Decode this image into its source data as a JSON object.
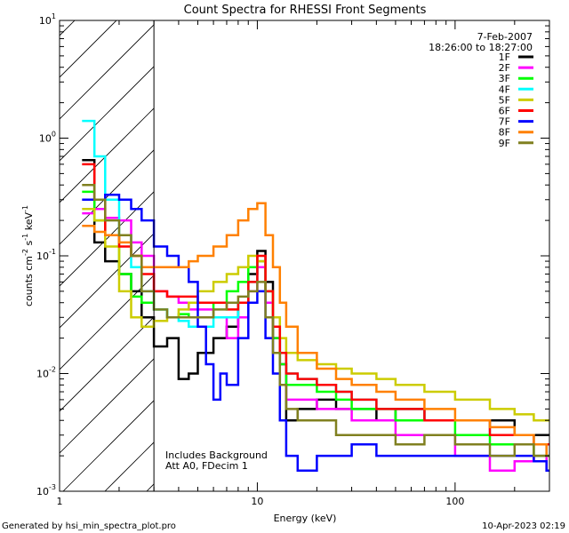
{
  "chart_data": {
    "type": "line",
    "title": "Count Spectra for RHESSI Front Segments",
    "xlabel": "Energy (keV)",
    "ylabel_main": "counts cm",
    "ylabel_sup1": "-2",
    "ylabel_mid1": " s",
    "ylabel_sup2": "-1",
    "ylabel_mid2": " keV",
    "ylabel_sup3": "-1",
    "xscale": "log",
    "yscale": "log",
    "xlim": [
      1,
      300
    ],
    "ylim": [
      0.001,
      10
    ],
    "x_ticks": [
      {
        "value": 1,
        "label": "1"
      },
      {
        "value": 10,
        "label": "10"
      },
      {
        "value": 100,
        "label": "100"
      }
    ],
    "y_ticks": [
      {
        "value": 0.001,
        "base": "10",
        "exp": "-3"
      },
      {
        "value": 0.01,
        "base": "10",
        "exp": "-2"
      },
      {
        "value": 0.1,
        "base": "10",
        "exp": "-1"
      },
      {
        "value": 1,
        "base": "10",
        "exp": "0"
      },
      {
        "value": 10,
        "base": "10",
        "exp": "1"
      }
    ],
    "attenuator_limit_kev": 3,
    "legend_date": "7-Feb-2007",
    "legend_time": "18:26:00 to 18:27:00",
    "annotation_line1": "Includes Background",
    "annotation_line2": "Att A0, FDecim 1",
    "series": [
      {
        "name": "1F",
        "color": "#000000",
        "x": [
          1.3,
          1.5,
          1.7,
          2,
          2.3,
          2.6,
          3,
          3.5,
          4,
          4.5,
          5,
          6,
          7,
          8,
          9,
          10,
          11,
          12,
          13,
          14,
          16,
          20,
          25,
          30,
          40,
          50,
          70,
          100,
          150,
          200,
          250,
          290
        ],
        "y": [
          0.65,
          0.13,
          0.09,
          0.07,
          0.05,
          0.03,
          0.017,
          0.02,
          0.009,
          0.01,
          0.015,
          0.02,
          0.025,
          0.04,
          0.07,
          0.11,
          0.06,
          0.02,
          0.012,
          0.004,
          0.005,
          0.006,
          0.005,
          0.005,
          0.004,
          0.005,
          0.004,
          0.004,
          0.004,
          0.003,
          0.003,
          0.003
        ]
      },
      {
        "name": "2F",
        "color": "#ff00ff",
        "x": [
          1.3,
          1.5,
          1.7,
          2,
          2.3,
          2.6,
          3,
          3.5,
          4,
          4.5,
          5,
          6,
          7,
          8,
          9,
          10,
          11,
          12,
          13,
          14,
          16,
          20,
          25,
          30,
          40,
          50,
          70,
          100,
          150,
          200,
          250,
          290
        ],
        "y": [
          0.23,
          0.25,
          0.21,
          0.2,
          0.13,
          0.1,
          0.05,
          0.045,
          0.04,
          0.035,
          0.035,
          0.03,
          0.02,
          0.03,
          0.05,
          0.08,
          0.04,
          0.02,
          0.012,
          0.006,
          0.006,
          0.005,
          0.005,
          0.004,
          0.004,
          0.003,
          0.003,
          0.002,
          0.0015,
          0.0018,
          0.002,
          0.0015
        ]
      },
      {
        "name": "3F",
        "color": "#00ff00",
        "x": [
          1.3,
          1.5,
          1.7,
          2,
          2.3,
          2.6,
          3,
          3.5,
          4,
          4.5,
          5,
          6,
          7,
          8,
          9,
          10,
          11,
          12,
          13,
          14,
          16,
          20,
          25,
          30,
          40,
          50,
          70,
          100,
          150,
          200,
          250,
          290
        ],
        "y": [
          0.35,
          0.2,
          0.15,
          0.07,
          0.045,
          0.04,
          0.035,
          0.03,
          0.032,
          0.03,
          0.03,
          0.04,
          0.05,
          0.06,
          0.08,
          0.09,
          0.05,
          0.02,
          0.012,
          0.008,
          0.008,
          0.007,
          0.006,
          0.005,
          0.005,
          0.004,
          0.004,
          0.003,
          0.0025,
          0.0025,
          0.002,
          0.002
        ]
      },
      {
        "name": "4F",
        "color": "#00ffff",
        "x": [
          1.3,
          1.5,
          1.7,
          2,
          2.3,
          2.6,
          3,
          3.5,
          4,
          4.5,
          5,
          6,
          7,
          8,
          9,
          10,
          11,
          12,
          13,
          14,
          16,
          20,
          25,
          30,
          40,
          50,
          70,
          100,
          150,
          200,
          250,
          290
        ],
        "y": [
          1.4,
          0.7,
          0.3,
          0.15,
          0.08,
          0.05,
          0.035,
          0.03,
          0.028,
          0.025,
          0.025,
          0.03,
          0.03,
          0.04,
          0.06,
          0.09,
          0.05,
          0.025,
          0.015,
          0.01,
          0.009,
          0.008,
          0.007,
          0.006,
          0.005,
          0.005,
          0.004,
          0.004,
          0.003,
          0.003,
          0.0025,
          0.002
        ]
      },
      {
        "name": "5F",
        "color": "#cccc00",
        "x": [
          1.3,
          1.5,
          1.7,
          2,
          2.3,
          2.6,
          3,
          3.5,
          4,
          4.5,
          5,
          6,
          7,
          8,
          9,
          10,
          11,
          12,
          13,
          14,
          16,
          20,
          25,
          30,
          40,
          50,
          70,
          100,
          150,
          200,
          250,
          290
        ],
        "y": [
          0.25,
          0.2,
          0.12,
          0.05,
          0.03,
          0.025,
          0.028,
          0.03,
          0.035,
          0.04,
          0.05,
          0.06,
          0.07,
          0.08,
          0.1,
          0.09,
          0.05,
          0.03,
          0.02,
          0.015,
          0.013,
          0.012,
          0.011,
          0.01,
          0.009,
          0.008,
          0.007,
          0.006,
          0.005,
          0.0045,
          0.004,
          0.004
        ]
      },
      {
        "name": "6F",
        "color": "#ff0000",
        "x": [
          1.3,
          1.5,
          1.7,
          2,
          2.3,
          2.6,
          3,
          3.5,
          4,
          4.5,
          5,
          6,
          7,
          8,
          9,
          10,
          11,
          12,
          13,
          14,
          16,
          20,
          25,
          30,
          40,
          50,
          70,
          100,
          150,
          200,
          250,
          290
        ],
        "y": [
          0.6,
          0.3,
          0.15,
          0.12,
          0.1,
          0.07,
          0.05,
          0.045,
          0.045,
          0.045,
          0.04,
          0.04,
          0.035,
          0.04,
          0.06,
          0.1,
          0.05,
          0.025,
          0.015,
          0.01,
          0.009,
          0.008,
          0.007,
          0.006,
          0.005,
          0.005,
          0.004,
          0.004,
          0.003,
          0.003,
          0.0025,
          0.0025
        ]
      },
      {
        "name": "7F",
        "color": "#0000ff",
        "x": [
          1.3,
          1.5,
          1.7,
          2,
          2.3,
          2.6,
          3,
          3.5,
          4,
          4.5,
          5,
          5.5,
          6,
          6.5,
          7,
          8,
          9,
          10,
          11,
          12,
          13,
          14,
          16,
          20,
          25,
          30,
          40,
          50,
          70,
          100,
          150,
          200,
          250,
          290
        ],
        "y": [
          0.3,
          0.3,
          0.33,
          0.3,
          0.25,
          0.2,
          0.12,
          0.1,
          0.08,
          0.06,
          0.025,
          0.012,
          0.006,
          0.01,
          0.008,
          0.02,
          0.04,
          0.05,
          0.02,
          0.01,
          0.004,
          0.002,
          0.0015,
          0.002,
          0.002,
          0.0025,
          0.002,
          0.002,
          0.002,
          0.002,
          0.002,
          0.002,
          0.0018,
          0.0015
        ]
      },
      {
        "name": "8F",
        "color": "#ff8000",
        "x": [
          1.3,
          1.5,
          1.7,
          2,
          2.3,
          2.6,
          3,
          3.5,
          4,
          4.5,
          5,
          6,
          7,
          8,
          9,
          10,
          11,
          12,
          13,
          14,
          16,
          20,
          25,
          30,
          40,
          50,
          70,
          100,
          150,
          200,
          250,
          290
        ],
        "y": [
          0.18,
          0.16,
          0.15,
          0.13,
          0.1,
          0.08,
          0.08,
          0.08,
          0.08,
          0.09,
          0.1,
          0.12,
          0.15,
          0.2,
          0.25,
          0.28,
          0.15,
          0.08,
          0.04,
          0.025,
          0.015,
          0.011,
          0.009,
          0.008,
          0.007,
          0.006,
          0.005,
          0.004,
          0.0035,
          0.003,
          0.0025,
          0.002
        ]
      },
      {
        "name": "9F",
        "color": "#808020",
        "x": [
          1.3,
          1.5,
          1.7,
          2,
          2.3,
          2.6,
          3,
          3.5,
          4,
          4.5,
          5,
          6,
          7,
          8,
          9,
          10,
          11,
          12,
          13,
          14,
          16,
          20,
          25,
          30,
          40,
          50,
          70,
          100,
          150,
          200,
          250,
          290
        ],
        "y": [
          0.4,
          0.3,
          0.2,
          0.15,
          0.1,
          0.05,
          0.035,
          0.03,
          0.03,
          0.03,
          0.03,
          0.035,
          0.04,
          0.045,
          0.05,
          0.06,
          0.03,
          0.015,
          0.008,
          0.005,
          0.004,
          0.004,
          0.003,
          0.003,
          0.003,
          0.0025,
          0.003,
          0.0025,
          0.002,
          0.0025,
          0.002,
          0.002
        ]
      }
    ]
  },
  "footer": {
    "generated_by": "Generated by hsi_min_spectra_plot.pro",
    "timestamp": "10-Apr-2023 02:19"
  }
}
